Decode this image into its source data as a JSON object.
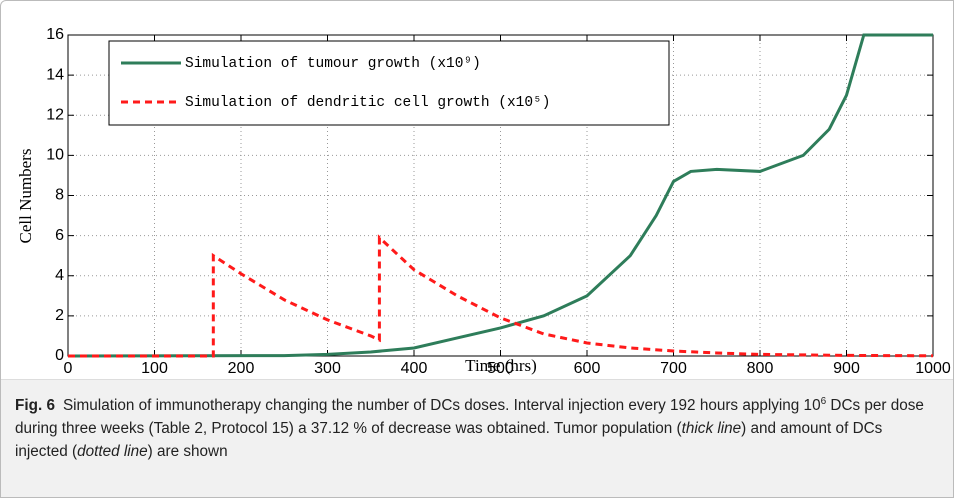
{
  "chart_data": {
    "type": "line",
    "xlabel": "Time (hrs)",
    "ylabel": "Cell Numbers",
    "xlim": [
      0,
      1000
    ],
    "ylim": [
      0,
      16
    ],
    "xticks": [
      0,
      100,
      200,
      300,
      400,
      500,
      600,
      700,
      800,
      900,
      1000
    ],
    "yticks": [
      0,
      2,
      4,
      6,
      8,
      10,
      12,
      14,
      16
    ],
    "grid": true,
    "legend": "upper left",
    "series": [
      {
        "name": "Simulation of tumour growth (x10⁹)",
        "color": "#2e7d5a",
        "style": "solid",
        "x": [
          0,
          250,
          300,
          350,
          400,
          450,
          500,
          550,
          600,
          650,
          680,
          700,
          720,
          750,
          800,
          850,
          880,
          900,
          920,
          1000
        ],
        "values": [
          0,
          0.02,
          0.08,
          0.2,
          0.4,
          0.9,
          1.4,
          2.0,
          3.0,
          5.0,
          7.0,
          8.7,
          9.2,
          9.3,
          9.2,
          10.0,
          11.3,
          13.0,
          16,
          16
        ]
      },
      {
        "name": "Simulation of dendritic cell growth (x10⁵)",
        "color": "#ff1a1a",
        "style": "dashed",
        "x": [
          0,
          168,
          168,
          200,
          250,
          300,
          350,
          360,
          360,
          400,
          450,
          500,
          550,
          600,
          650,
          700,
          750,
          800,
          900,
          1000
        ],
        "values": [
          0,
          0,
          5.0,
          4.1,
          2.8,
          1.8,
          1.0,
          0.8,
          5.9,
          4.3,
          3.0,
          1.9,
          1.1,
          0.65,
          0.4,
          0.25,
          0.15,
          0.08,
          0.03,
          0.01
        ]
      }
    ]
  },
  "caption": {
    "label": "Fig. 6",
    "parts": [
      {
        "text": "Simulation of immunotherapy changing the number of DCs doses. Interval injection every 192 hours applying 10",
        "style": "normal"
      },
      {
        "text": "6",
        "style": "sup"
      },
      {
        "text": " DCs per dose during three weeks (Table 2, Protocol 15) a 37.12 % of decrease was obtained. Tumor population (",
        "style": "normal"
      },
      {
        "text": "thick line",
        "style": "italic"
      },
      {
        "text": ") and amount of DCs injected (",
        "style": "normal"
      },
      {
        "text": "dotted line",
        "style": "italic"
      },
      {
        "text": ") are shown",
        "style": "normal"
      }
    ]
  }
}
